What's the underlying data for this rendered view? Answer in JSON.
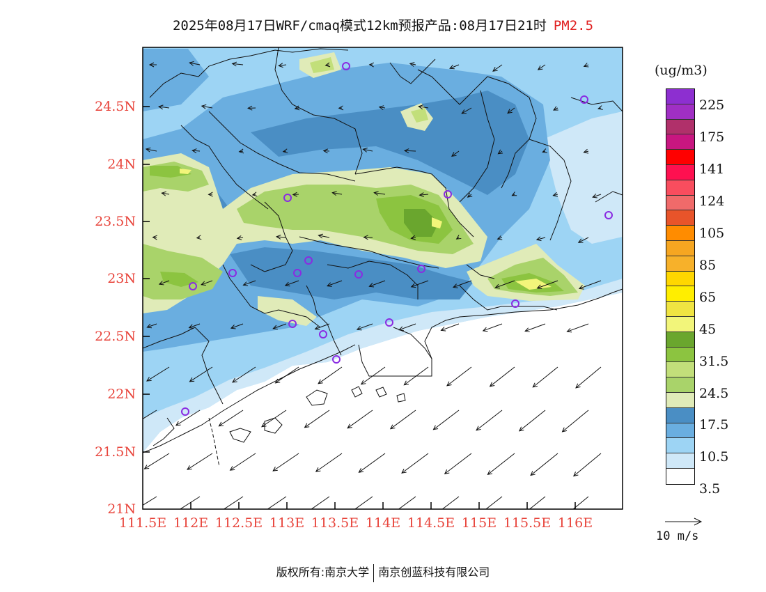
{
  "title": {
    "prefix": "2025年08月17日WRF/cmaq模式12km预报产品:08月17日21时",
    "species": "PM2.5"
  },
  "axes": {
    "lat_labels": [
      "24.5N",
      "24N",
      "23.5N",
      "23N",
      "22.5N",
      "22N",
      "21.5N",
      "21N"
    ],
    "lon_labels": [
      "111.5E",
      "112E",
      "112.5E",
      "113E",
      "113.5E",
      "114E",
      "114.5E",
      "115E",
      "115.5E",
      "116E"
    ]
  },
  "legend": {
    "unit": "(ug/m3)",
    "levels": [
      "225",
      "175",
      "141",
      "124",
      "105",
      "85",
      "65",
      "45",
      "31.5",
      "24.5",
      "17.5",
      "10.5",
      "3.5"
    ],
    "colors_top_to_bottom": [
      "#8d2fd0",
      "#a02fc4",
      "#b0306a",
      "#c81680",
      "#ff0000",
      "#ff1050",
      "#f94d5e",
      "#f06a6a",
      "#e8542a",
      "#ff8c00",
      "#f6a621",
      "#f7b12a",
      "#ffd700",
      "#ffee00",
      "#f0e442",
      "#f2f57a",
      "#6aa62e",
      "#8cc440",
      "#c2df7a",
      "#a9d36a",
      "#e0ebb8",
      "#4a8ec4",
      "#6aaee0",
      "#9dd4f4",
      "#cfe8f8",
      "#ffffff"
    ]
  },
  "wind_reference": {
    "label": "10 m/s"
  },
  "credit": {
    "left": "版权所有:南京大学",
    "right": "南京创蓝科技有限公司"
  }
}
